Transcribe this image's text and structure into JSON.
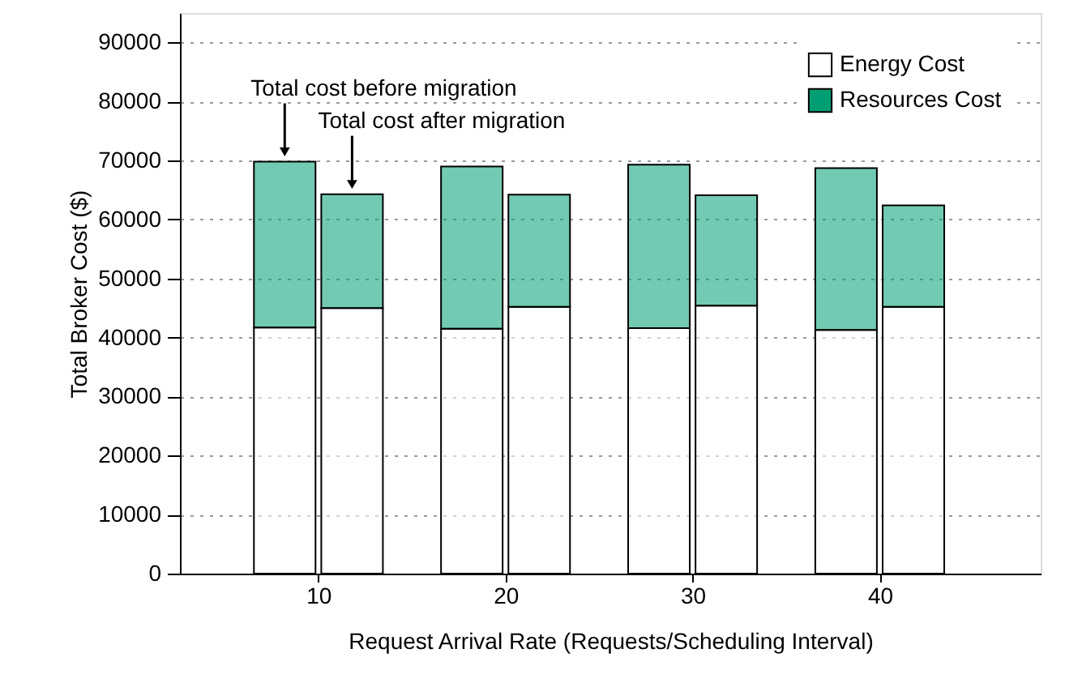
{
  "chart_data": {
    "type": "bar",
    "stacked": true,
    "xlabel": "Request Arrival Rate (Requests/Scheduling Interval)",
    "ylabel": "Total Broker Cost  ($)",
    "x": [
      8.2,
      11.8,
      18.2,
      21.8,
      28.2,
      31.8,
      38.2,
      41.8
    ],
    "series": [
      {
        "name": "Energy Cost",
        "color": "#ffffff",
        "values": [
          41700,
          45000,
          41500,
          45200,
          41600,
          45400,
          41300,
          45200
        ]
      },
      {
        "name": "Resources Cost",
        "color": "#009e73",
        "values": [
          28100,
          19300,
          27500,
          19000,
          27700,
          18700,
          27400,
          17200
        ]
      }
    ],
    "xlim": [
      2.6,
      48.6
    ],
    "xticks": [
      10,
      20,
      30,
      40
    ],
    "ylim": [
      0,
      95000
    ],
    "yticks": [
      0,
      10000,
      20000,
      30000,
      40000,
      50000,
      60000,
      70000,
      80000,
      90000
    ],
    "grid": "y",
    "legend": "top right",
    "annotations": [
      {
        "text": "Total cost before migration",
        "x": 8.2,
        "y": 69800
      },
      {
        "text": "Total cost after migration",
        "x": 11.8,
        "y": 64300
      }
    ]
  }
}
